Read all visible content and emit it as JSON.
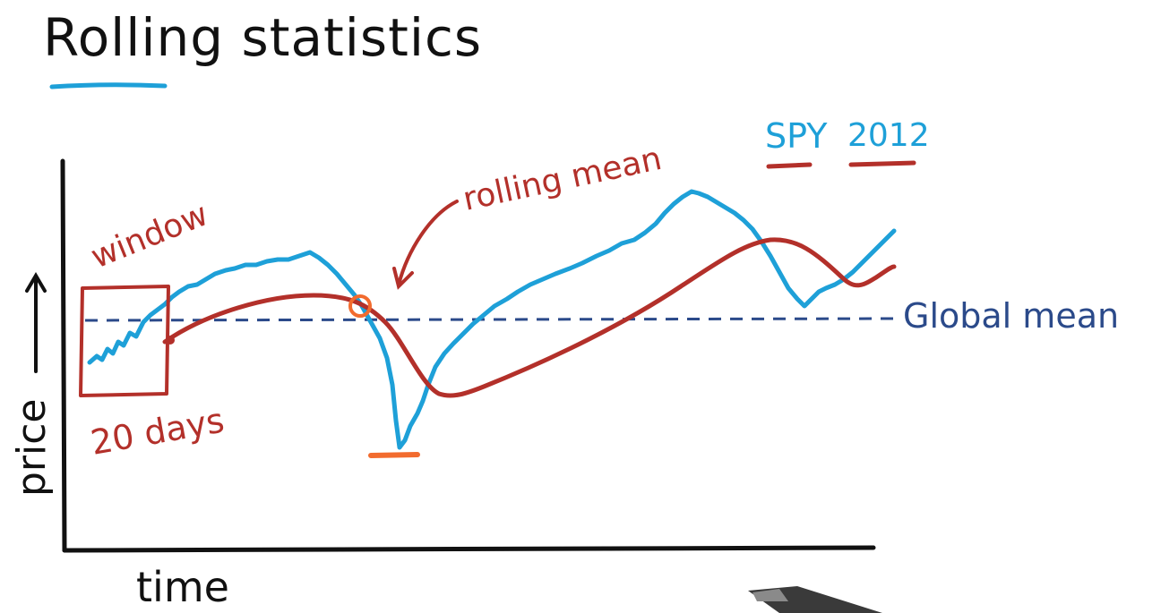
{
  "title": "Rolling statistics",
  "label_window": "window",
  "label_days": "20 days",
  "label_rolling_mean": "rolling mean",
  "label_global_mean": "Global mean",
  "label_spy": "SPY",
  "label_year": "2012",
  "axis_y": "price",
  "axis_x": "time",
  "colors": {
    "ink": "#111111",
    "price_series": "#1ea0d8",
    "rolling_mean": "#b3302a",
    "global_mean": "#2b4a8a",
    "highlight": "#f26b2e",
    "title_underline": "#1ea0d8"
  }
}
